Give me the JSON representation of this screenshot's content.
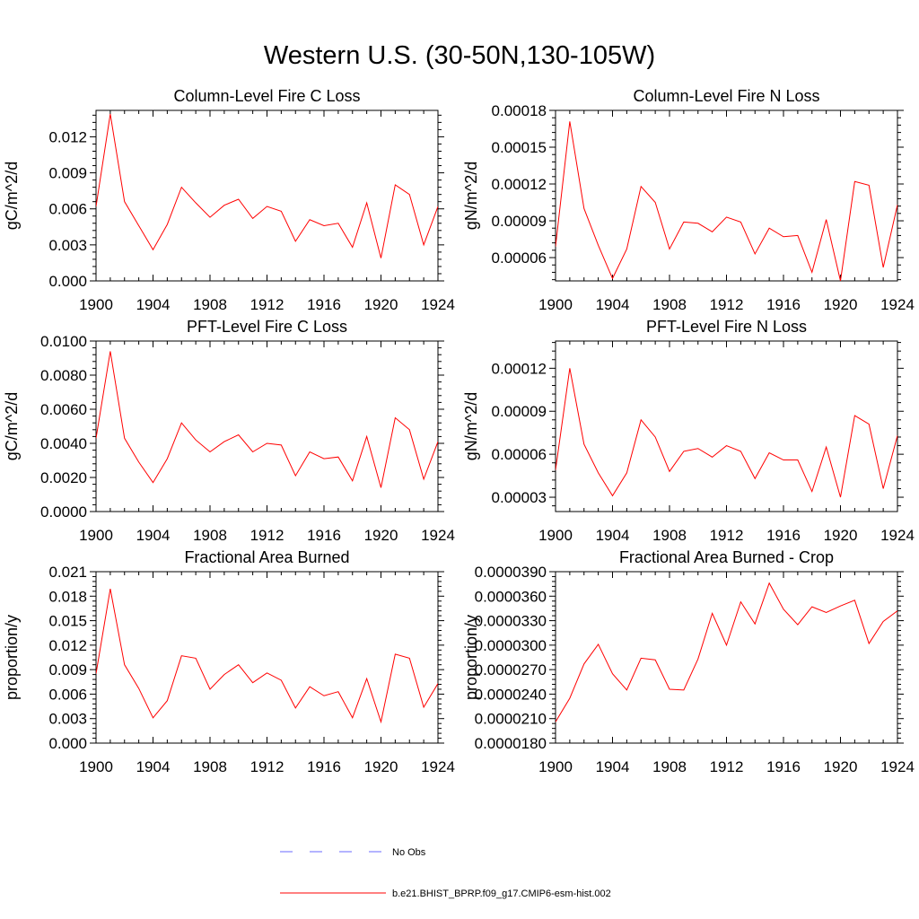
{
  "figure": {
    "title": "Western U.S. (30-50N,130-105W)",
    "legend": [
      {
        "label": "No Obs",
        "color": "#6a6aff",
        "dash": true
      },
      {
        "label": "b.e21.BHIST_BPRP.f09_g17.CMIP6-esm-hist.002",
        "color": "#ff0000",
        "dash": false
      }
    ]
  },
  "chart_data": [
    {
      "type": "line",
      "title": "Column-Level Fire C Loss",
      "ylabel": "gC/m^2/d",
      "xlim": [
        1900,
        1924
      ],
      "ylim": [
        0,
        0.0142
      ],
      "xticks": [
        1900,
        1904,
        1908,
        1912,
        1916,
        1920,
        1924
      ],
      "xtick_labels": [
        "1900",
        "1904",
        "1908",
        "1912",
        "1916",
        "1920",
        "1924"
      ],
      "yticks": [
        0,
        0.003,
        0.006,
        0.009,
        0.012
      ],
      "ytick_labels": [
        "0.000",
        "0.003",
        "0.006",
        "0.009",
        "0.012"
      ],
      "series": [
        {
          "color": "#ff0000",
          "x": [
            1900,
            1901,
            1902,
            1903,
            1904,
            1905,
            1906,
            1907,
            1908,
            1909,
            1910,
            1911,
            1912,
            1913,
            1914,
            1915,
            1916,
            1917,
            1918,
            1919,
            1920,
            1921,
            1922,
            1923,
            1924
          ],
          "values": [
            0.0062,
            0.0139,
            0.0066,
            0.0046,
            0.0026,
            0.0047,
            0.0078,
            0.0065,
            0.0053,
            0.0063,
            0.0068,
            0.0052,
            0.0062,
            0.0058,
            0.0033,
            0.0051,
            0.0046,
            0.0048,
            0.0028,
            0.0065,
            0.0019,
            0.008,
            0.0072,
            0.003,
            0.0062
          ]
        }
      ]
    },
    {
      "type": "line",
      "title": "Column-Level Fire N Loss",
      "ylabel": "gN/m^2/d",
      "xlim": [
        1900,
        1924
      ],
      "ylim": [
        4.1e-05,
        0.00018
      ],
      "xticks": [
        1900,
        1904,
        1908,
        1912,
        1916,
        1920,
        1924
      ],
      "xtick_labels": [
        "1900",
        "1904",
        "1908",
        "1912",
        "1916",
        "1920",
        "1924"
      ],
      "yticks": [
        6e-05,
        9e-05,
        0.00012,
        0.00015,
        0.00018
      ],
      "ytick_labels": [
        "0.00006",
        "0.00009",
        "0.00012",
        "0.00015",
        "0.00018"
      ],
      "series": [
        {
          "color": "#ff0000",
          "x": [
            1900,
            1901,
            1902,
            1903,
            1904,
            1905,
            1906,
            1907,
            1908,
            1909,
            1910,
            1911,
            1912,
            1913,
            1914,
            1915,
            1916,
            1917,
            1918,
            1919,
            1920,
            1921,
            1922,
            1923,
            1924
          ],
          "values": [
            6.9e-05,
            0.000171,
            0.0001,
            7e-05,
            4.3e-05,
            6.7e-05,
            0.000118,
            0.000105,
            6.7e-05,
            8.9e-05,
            8.8e-05,
            8.1e-05,
            9.3e-05,
            8.9e-05,
            6.3e-05,
            8.4e-05,
            7.7e-05,
            7.8e-05,
            4.8e-05,
            9.1e-05,
            4.1e-05,
            0.000122,
            0.000119,
            5.2e-05,
            0.000103
          ]
        }
      ]
    },
    {
      "type": "line",
      "title": "PFT-Level Fire C Loss",
      "ylabel": "gC/m^2/d",
      "xlim": [
        1900,
        1924
      ],
      "ylim": [
        0,
        0.01
      ],
      "xticks": [
        1900,
        1904,
        1908,
        1912,
        1916,
        1920,
        1924
      ],
      "xtick_labels": [
        "1900",
        "1904",
        "1908",
        "1912",
        "1916",
        "1920",
        "1924"
      ],
      "yticks": [
        0,
        0.002,
        0.004,
        0.006,
        0.008,
        0.01
      ],
      "ytick_labels": [
        "0.0000",
        "0.0020",
        "0.0040",
        "0.0060",
        "0.0080",
        "0.0100"
      ],
      "series": [
        {
          "color": "#ff0000",
          "x": [
            1900,
            1901,
            1902,
            1903,
            1904,
            1905,
            1906,
            1907,
            1908,
            1909,
            1910,
            1911,
            1912,
            1913,
            1914,
            1915,
            1916,
            1917,
            1918,
            1919,
            1920,
            1921,
            1922,
            1923,
            1924
          ],
          "values": [
            0.0043,
            0.0094,
            0.0043,
            0.0029,
            0.0017,
            0.0031,
            0.0052,
            0.0042,
            0.0035,
            0.0041,
            0.0045,
            0.0035,
            0.004,
            0.0039,
            0.0021,
            0.0035,
            0.0031,
            0.0032,
            0.0018,
            0.0044,
            0.0014,
            0.0055,
            0.0048,
            0.0019,
            0.0041
          ]
        }
      ]
    },
    {
      "type": "line",
      "title": "PFT-Level Fire N Loss",
      "ylabel": "gN/m^2/d",
      "xlim": [
        1900,
        1924
      ],
      "ylim": [
        2e-05,
        0.000139
      ],
      "xticks": [
        1900,
        1904,
        1908,
        1912,
        1916,
        1920,
        1924
      ],
      "xtick_labels": [
        "1900",
        "1904",
        "1908",
        "1912",
        "1916",
        "1920",
        "1924"
      ],
      "yticks": [
        3e-05,
        6e-05,
        9e-05,
        0.00012
      ],
      "ytick_labels": [
        "0.00003",
        "0.00006",
        "0.00009",
        "0.00012"
      ],
      "series": [
        {
          "color": "#ff0000",
          "x": [
            1900,
            1901,
            1902,
            1903,
            1904,
            1905,
            1906,
            1907,
            1908,
            1909,
            1910,
            1911,
            1912,
            1913,
            1914,
            1915,
            1916,
            1917,
            1918,
            1919,
            1920,
            1921,
            1922,
            1923,
            1924
          ],
          "values": [
            4.9e-05,
            0.00012,
            6.7e-05,
            4.7e-05,
            3.1e-05,
            4.7e-05,
            8.4e-05,
            7.2e-05,
            4.8e-05,
            6.2e-05,
            6.4e-05,
            5.8e-05,
            6.6e-05,
            6.2e-05,
            4.3e-05,
            6.1e-05,
            5.6e-05,
            5.6e-05,
            3.4e-05,
            6.5e-05,
            3e-05,
            8.7e-05,
            8.1e-05,
            3.6e-05,
            7.3e-05
          ]
        }
      ]
    },
    {
      "type": "line",
      "title": "Fractional Area Burned",
      "ylabel": "proportion/y",
      "xlim": [
        1900,
        1924
      ],
      "ylim": [
        0,
        0.021
      ],
      "xticks": [
        1900,
        1904,
        1908,
        1912,
        1916,
        1920,
        1924
      ],
      "xtick_labels": [
        "1900",
        "1904",
        "1908",
        "1912",
        "1916",
        "1920",
        "1924"
      ],
      "yticks": [
        0,
        0.003,
        0.006,
        0.009,
        0.012,
        0.015,
        0.018,
        0.021
      ],
      "ytick_labels": [
        "0.000",
        "0.003",
        "0.006",
        "0.009",
        "0.012",
        "0.015",
        "0.018",
        "0.021"
      ],
      "series": [
        {
          "color": "#ff0000",
          "x": [
            1900,
            1901,
            1902,
            1903,
            1904,
            1905,
            1906,
            1907,
            1908,
            1909,
            1910,
            1911,
            1912,
            1913,
            1914,
            1915,
            1916,
            1917,
            1918,
            1919,
            1920,
            1921,
            1922,
            1923,
            1924
          ],
          "values": [
            0.0085,
            0.0189,
            0.0096,
            0.0067,
            0.0031,
            0.0052,
            0.0107,
            0.0104,
            0.0066,
            0.0084,
            0.0096,
            0.0074,
            0.0086,
            0.0077,
            0.0043,
            0.0069,
            0.0058,
            0.0063,
            0.0031,
            0.0079,
            0.0026,
            0.0109,
            0.0104,
            0.0044,
            0.0073
          ]
        }
      ]
    },
    {
      "type": "line",
      "title": "Fractional Area Burned - Crop",
      "ylabel": "proportion/y",
      "xlim": [
        1900,
        1924
      ],
      "ylim": [
        1.8e-05,
        3.9e-05
      ],
      "xticks": [
        1900,
        1904,
        1908,
        1912,
        1916,
        1920,
        1924
      ],
      "xtick_labels": [
        "1900",
        "1904",
        "1908",
        "1912",
        "1916",
        "1920",
        "1924"
      ],
      "yticks": [
        1.8e-05,
        2.1e-05,
        2.4e-05,
        2.7e-05,
        3e-05,
        3.3e-05,
        3.6e-05,
        3.9e-05
      ],
      "ytick_labels": [
        "0.0000180",
        "0.0000210",
        "0.0000240",
        "0.0000270",
        "0.0000300",
        "0.0000330",
        "0.0000360",
        "0.0000390"
      ],
      "series": [
        {
          "color": "#ff0000",
          "x": [
            1900,
            1901,
            1902,
            1903,
            1904,
            1905,
            1906,
            1907,
            1908,
            1909,
            1910,
            1911,
            1912,
            1913,
            1914,
            1915,
            1916,
            1917,
            1918,
            1919,
            1920,
            1921,
            1922,
            1923,
            1924
          ],
          "values": [
            2.06e-05,
            2.35e-05,
            2.77e-05,
            3.01e-05,
            2.65e-05,
            2.45e-05,
            2.84e-05,
            2.82e-05,
            2.46e-05,
            2.45e-05,
            2.83e-05,
            3.39e-05,
            3e-05,
            3.53e-05,
            3.26e-05,
            3.76e-05,
            3.44e-05,
            3.25e-05,
            3.47e-05,
            3.4e-05,
            3.48e-05,
            3.55e-05,
            3.02e-05,
            3.29e-05,
            3.42e-05
          ]
        }
      ]
    }
  ]
}
